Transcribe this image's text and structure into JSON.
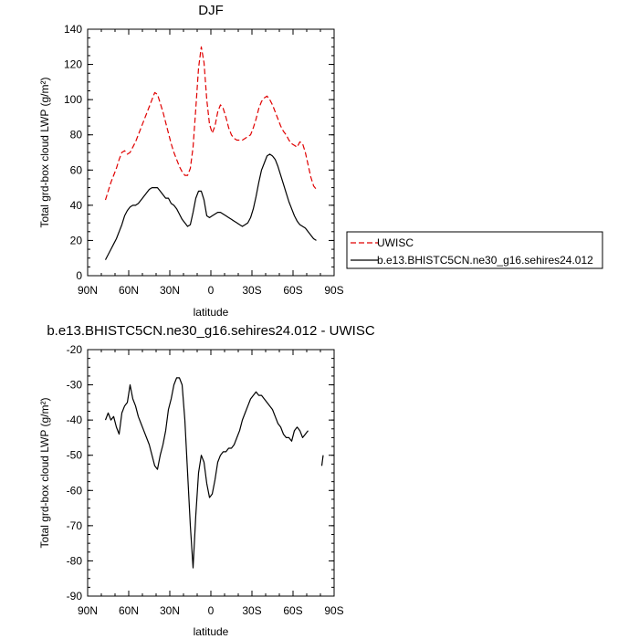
{
  "chart_data": [
    {
      "type": "line",
      "title": "DJF",
      "xlabel": "latitude",
      "ylabel": "Total grd-box cloud LWP (g/m²)",
      "xlim": [
        90,
        -90
      ],
      "ylim": [
        0,
        140
      ],
      "xticks": [
        {
          "value": 90,
          "label": "90N"
        },
        {
          "value": 60,
          "label": "60N"
        },
        {
          "value": 30,
          "label": "30N"
        },
        {
          "value": 0,
          "label": "0"
        },
        {
          "value": -30,
          "label": "30S"
        },
        {
          "value": -60,
          "label": "60S"
        },
        {
          "value": -90,
          "label": "90S"
        }
      ],
      "yticks": [
        0,
        20,
        40,
        60,
        80,
        100,
        120,
        140
      ],
      "legend": "outside-right",
      "series": [
        {
          "name": "UWISC",
          "color": "#e00000",
          "dash": "dashed",
          "x": [
            77,
            75,
            73,
            71,
            69,
            67,
            65,
            63,
            61,
            59,
            57,
            55,
            53,
            51,
            49,
            47,
            45,
            43,
            41,
            39,
            37,
            35,
            33,
            31,
            29,
            27,
            25,
            23,
            21,
            19,
            17,
            15,
            13,
            11,
            9,
            7,
            5,
            3,
            1,
            -1,
            -3,
            -5,
            -7,
            -9,
            -11,
            -13,
            -15,
            -17,
            -19,
            -21,
            -23,
            -25,
            -27,
            -29,
            -31,
            -33,
            -35,
            -37,
            -39,
            -41,
            -43,
            -45,
            -47,
            -49,
            -51,
            -53,
            -55,
            -57,
            -59,
            -61,
            -63,
            -65,
            -67,
            -69,
            -71,
            -73,
            -75,
            -77
          ],
          "y": [
            43,
            48,
            53,
            57,
            61,
            66,
            70,
            71,
            69,
            70,
            73,
            76,
            80,
            84,
            88,
            92,
            96,
            100,
            104,
            103,
            98,
            93,
            87,
            81,
            75,
            70,
            66,
            62,
            59,
            57,
            57,
            61,
            73,
            95,
            118,
            130,
            121,
            100,
            86,
            81,
            85,
            93,
            97,
            95,
            90,
            84,
            80,
            78,
            77,
            77,
            77,
            78,
            79,
            80,
            84,
            89,
            95,
            99,
            101,
            102,
            100,
            97,
            93,
            89,
            85,
            82,
            80,
            77,
            75,
            74,
            73,
            76,
            75,
            70,
            63,
            56,
            51,
            49
          ]
        },
        {
          "name": "b.e13.BHISTC5CN.ne30_g16.sehires24.012",
          "color": "#000000",
          "dash": "solid",
          "x": [
            77,
            75,
            73,
            71,
            69,
            67,
            65,
            63,
            61,
            59,
            57,
            55,
            53,
            51,
            49,
            47,
            45,
            43,
            41,
            39,
            37,
            35,
            33,
            31,
            29,
            27,
            25,
            23,
            21,
            19,
            17,
            15,
            13,
            11,
            9,
            7,
            5,
            3,
            1,
            -1,
            -3,
            -5,
            -7,
            -9,
            -11,
            -13,
            -15,
            -17,
            -19,
            -21,
            -23,
            -25,
            -27,
            -29,
            -31,
            -33,
            -35,
            -37,
            -39,
            -41,
            -43,
            -45,
            -47,
            -49,
            -51,
            -53,
            -55,
            -57,
            -59,
            -61,
            -63,
            -65,
            -67,
            -69,
            -71,
            -73,
            -75,
            -77
          ],
          "y": [
            9,
            12,
            15,
            18,
            21,
            25,
            29,
            34,
            37,
            39,
            40,
            40,
            41,
            43,
            45,
            47,
            49,
            50,
            50,
            50,
            48,
            46,
            44,
            44,
            41,
            40,
            38,
            35,
            32,
            30,
            28,
            29,
            36,
            44,
            48,
            48,
            43,
            34,
            33,
            34,
            35,
            36,
            36,
            35,
            34,
            33,
            32,
            31,
            30,
            29,
            28,
            29,
            30,
            33,
            38,
            45,
            53,
            60,
            64,
            68,
            69,
            68,
            66,
            62,
            57,
            52,
            47,
            42,
            38,
            34,
            31,
            29,
            28,
            27,
            25,
            23,
            21,
            20
          ]
        }
      ]
    },
    {
      "type": "line",
      "title": "b.e13.BHISTC5CN.ne30_g16.sehires24.012 - UWISC",
      "xlabel": "latitude",
      "ylabel": "Total grd-box cloud LWP (g/m²)",
      "xlim": [
        90,
        -90
      ],
      "ylim": [
        -90,
        -20
      ],
      "xticks": [
        {
          "value": 90,
          "label": "90N"
        },
        {
          "value": 60,
          "label": "60N"
        },
        {
          "value": 30,
          "label": "30N"
        },
        {
          "value": 0,
          "label": "0"
        },
        {
          "value": -30,
          "label": "30S"
        },
        {
          "value": -60,
          "label": "60S"
        },
        {
          "value": -90,
          "label": "90S"
        }
      ],
      "yticks": [
        -20,
        -30,
        -40,
        -50,
        -60,
        -70,
        -80,
        -90
      ],
      "series": [
        {
          "color": "#000000",
          "dash": "solid",
          "x": [
            77,
            75,
            73,
            71,
            69,
            67,
            65,
            63,
            61,
            59,
            57,
            55,
            53,
            51,
            49,
            47,
            45,
            43,
            41,
            39,
            37,
            35,
            33,
            31,
            29,
            27,
            25,
            23,
            21,
            19,
            17,
            15,
            13,
            11,
            9,
            7,
            5,
            3,
            1,
            -1,
            -3,
            -5,
            -7,
            -9,
            -11,
            -13,
            -15,
            -17,
            -19,
            -21,
            -23,
            -25,
            -27,
            -29,
            -31,
            -33,
            -35,
            -37,
            -39,
            -41,
            -43,
            -45,
            -47,
            -49,
            -51,
            -53,
            -55,
            -57,
            -59,
            -61,
            -63,
            -65,
            -67,
            -69,
            -71
          ],
          "y": [
            -40,
            -38,
            -40,
            -39,
            -42,
            -44,
            -38,
            -36,
            -35,
            -30,
            -34,
            -36,
            -39,
            -41,
            -43,
            -45,
            -47,
            -50,
            -53,
            -54,
            -50,
            -47,
            -43,
            -37,
            -34,
            -30,
            -28,
            -28,
            -30,
            -40,
            -55,
            -70,
            -82,
            -67,
            -55,
            -50,
            -52,
            -58,
            -62,
            -61,
            -57,
            -52,
            -50,
            -49,
            -49,
            -48,
            -48,
            -47,
            -45,
            -43,
            -40,
            -38,
            -36,
            -34,
            -33,
            -32,
            -33,
            -33,
            -34,
            -35,
            -36,
            -37,
            -39,
            -41,
            -42,
            -44,
            -45,
            -45,
            -46,
            -43,
            -42,
            -43,
            -45,
            -44,
            -43
          ]
        },
        {
          "color": "#000000",
          "dash": "solid",
          "x": [
            -81,
            -82
          ],
          "y": [
            -53,
            -50
          ]
        }
      ]
    }
  ]
}
